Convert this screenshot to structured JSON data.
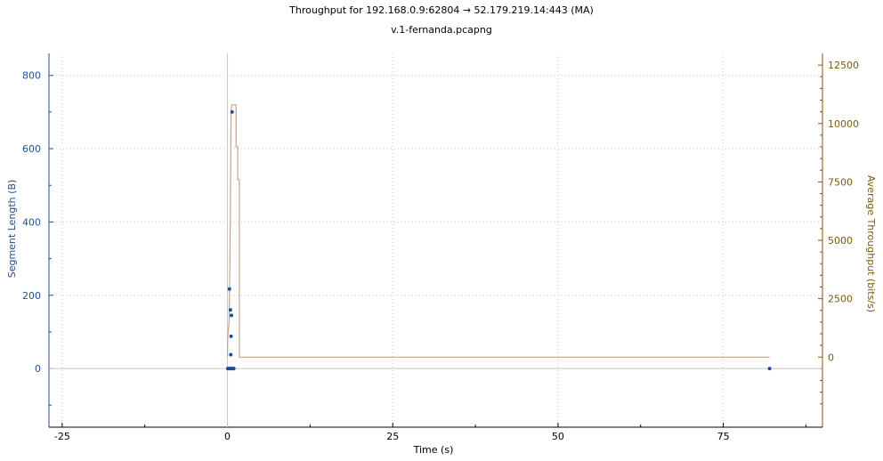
{
  "chart_data": {
    "type": "scatter",
    "title": "Throughput for 192.168.0.9:62804 → 52.179.219.14:443 (MA)",
    "subtitle": "v.1-fernanda.pcapng",
    "xlabel": "Time (s)",
    "ylabel_left": "Segment Length (B)",
    "ylabel_right": "Average Throughput (bits/s)",
    "xlim": [
      -27,
      90
    ],
    "ylim_left": [
      -160,
      860
    ],
    "ylim_right": [
      -3000,
      13000
    ],
    "x_ticks": [
      -25,
      0,
      25,
      50,
      75
    ],
    "y_ticks_left": [
      0,
      200,
      400,
      600,
      800
    ],
    "y_ticks_right": [
      0,
      2500,
      5000,
      7500,
      10000,
      12500
    ],
    "grid": true,
    "colors": {
      "segments": "#1f4e96",
      "throughput": "#c8a288",
      "right_axis": "#7a5a10",
      "zero_lines": "#c8c8c8"
    },
    "series": [
      {
        "name": "Segment Length",
        "axis": "left",
        "points": [
          {
            "x": 0.05,
            "y": 0
          },
          {
            "x": 0.2,
            "y": 0
          },
          {
            "x": 0.35,
            "y": 0
          },
          {
            "x": 0.5,
            "y": 0
          },
          {
            "x": 0.65,
            "y": 0
          },
          {
            "x": 0.8,
            "y": 0
          },
          {
            "x": 0.95,
            "y": 0
          },
          {
            "x": 0.3,
            "y": 217
          },
          {
            "x": 0.45,
            "y": 160
          },
          {
            "x": 0.6,
            "y": 145
          },
          {
            "x": 0.55,
            "y": 88
          },
          {
            "x": 0.5,
            "y": 38
          },
          {
            "x": 0.7,
            "y": 700
          },
          {
            "x": 82,
            "y": 0
          }
        ]
      },
      {
        "name": "Average Throughput",
        "axis": "right",
        "points": [
          {
            "x": 0.0,
            "y": 0
          },
          {
            "x": 0.05,
            "y": 900
          },
          {
            "x": 0.25,
            "y": 1500
          },
          {
            "x": 0.35,
            "y": 3500
          },
          {
            "x": 0.45,
            "y": 6500
          },
          {
            "x": 0.55,
            "y": 10500
          },
          {
            "x": 0.65,
            "y": 10800
          },
          {
            "x": 1.3,
            "y": 10800
          },
          {
            "x": 1.3,
            "y": 9000
          },
          {
            "x": 1.55,
            "y": 9000
          },
          {
            "x": 1.55,
            "y": 7600
          },
          {
            "x": 1.8,
            "y": 7600
          },
          {
            "x": 1.8,
            "y": 0
          },
          {
            "x": 82,
            "y": 0
          }
        ]
      }
    ]
  }
}
